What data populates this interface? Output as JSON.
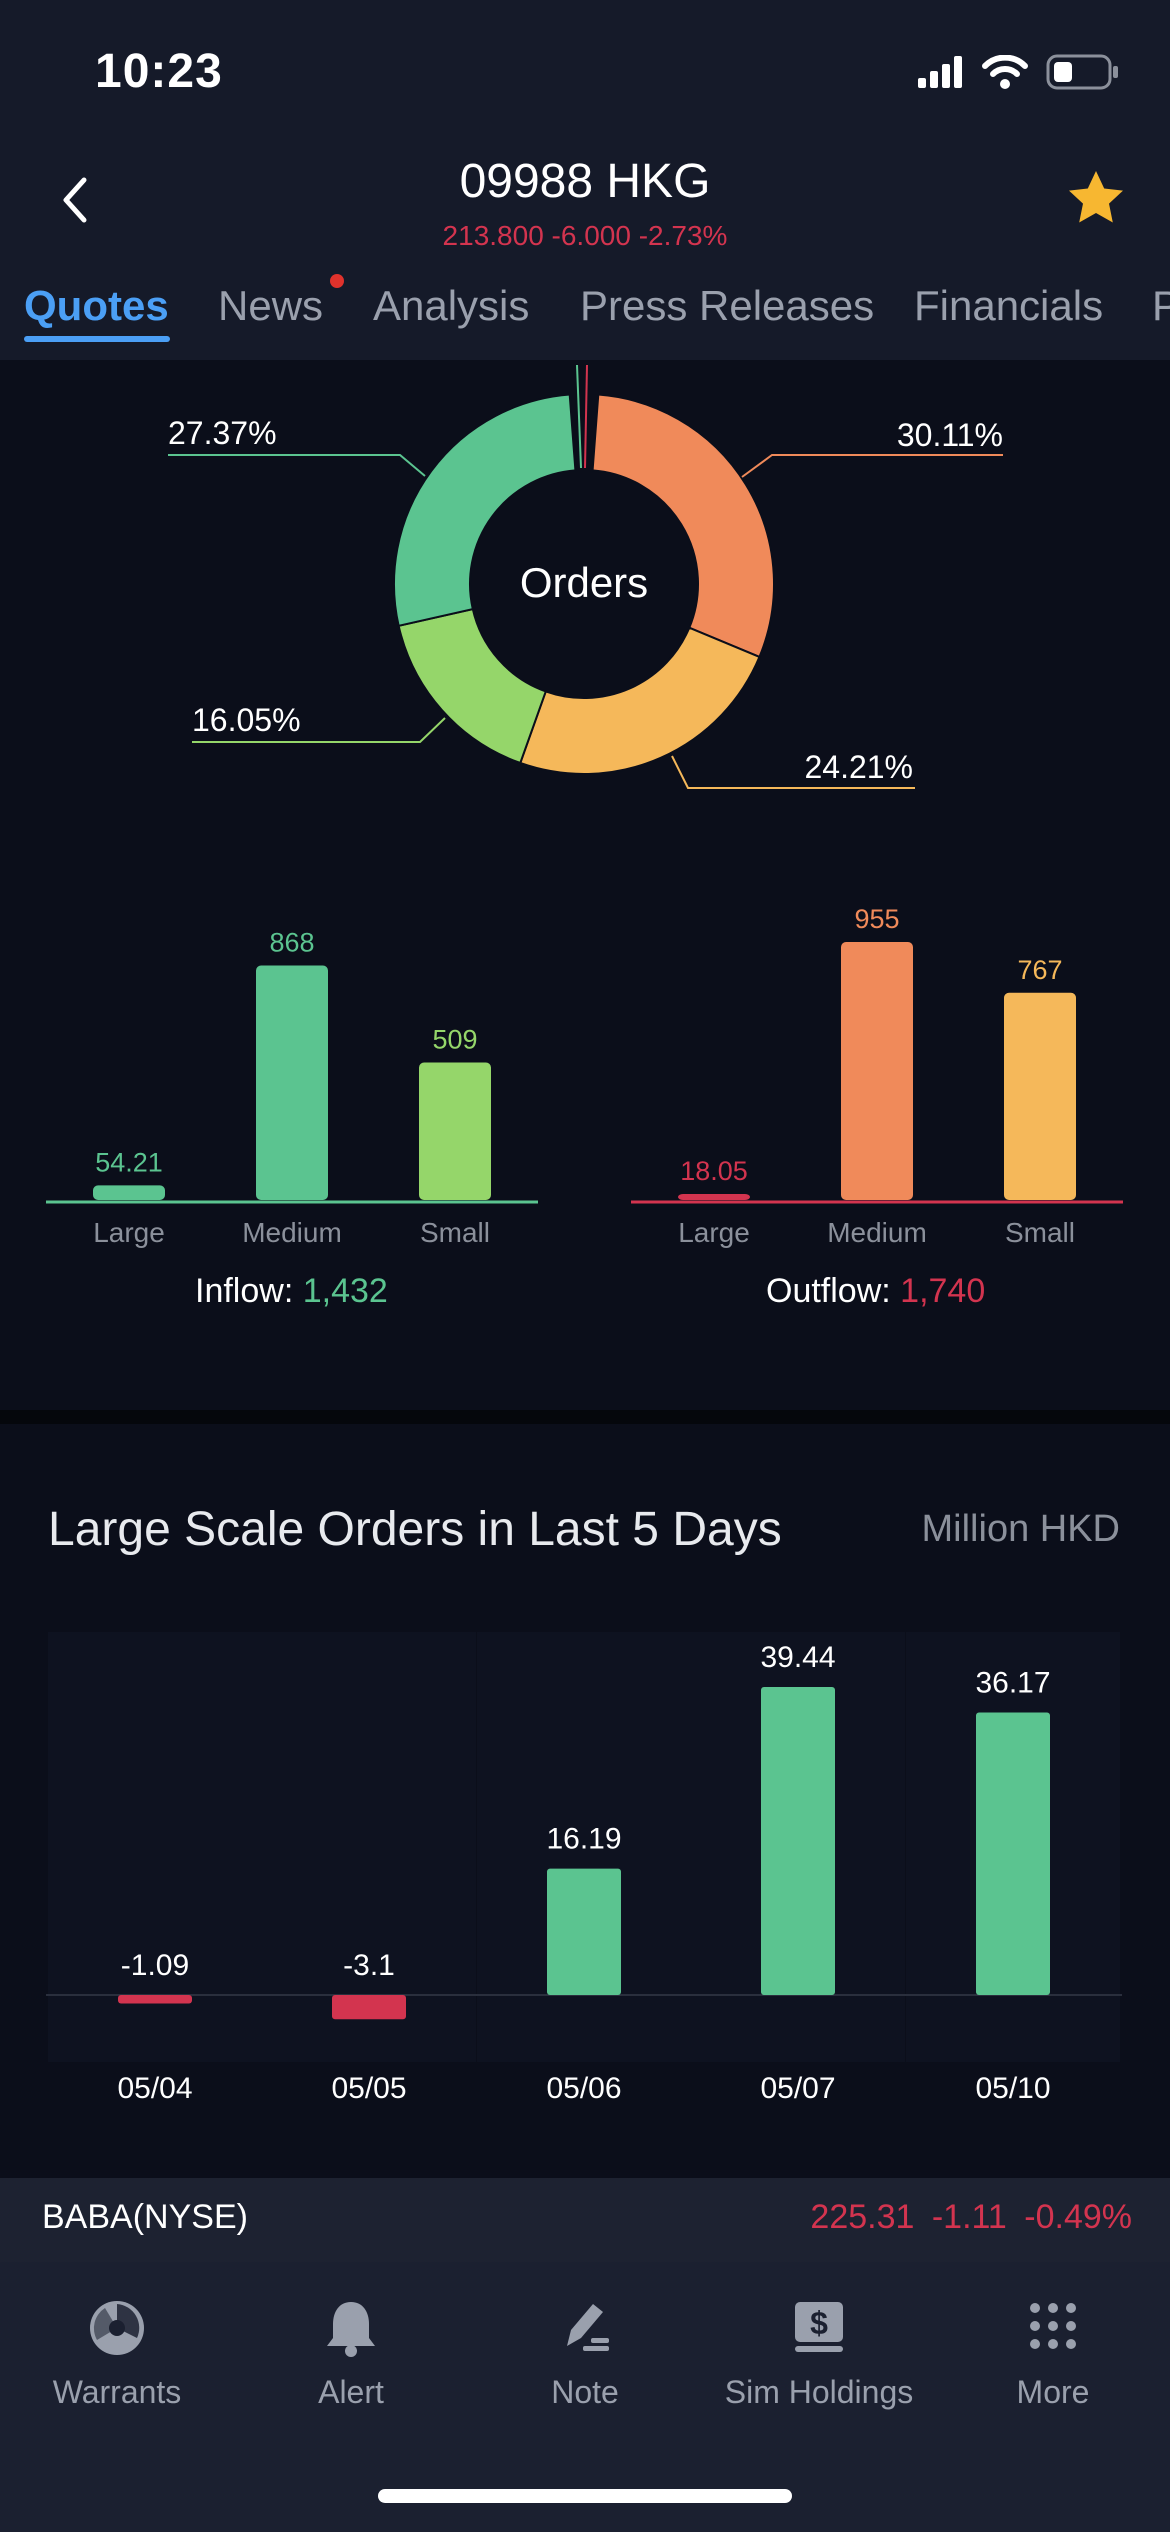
{
  "status_bar": {
    "time": "10:23"
  },
  "header": {
    "title": "09988 HKG",
    "quote": "213.800 -6.000 -2.73%"
  },
  "tabs": [
    {
      "label": "Quotes",
      "active": true
    },
    {
      "label": "News",
      "has_badge": true
    },
    {
      "label": "Analysis"
    },
    {
      "label": "Press Releases"
    },
    {
      "label": "Financials"
    },
    {
      "label": "P"
    }
  ],
  "orders_donut": {
    "center_label": "Orders",
    "slices": [
      {
        "label": "30.11%",
        "value": 30.11,
        "color": "#f08a5a"
      },
      {
        "label": "24.21%",
        "value": 24.21,
        "color": "#f5b85a"
      },
      {
        "label": "16.05%",
        "value": 16.05,
        "color": "#95d66a"
      },
      {
        "label": "27.37%",
        "value": 27.37,
        "color": "#5bc490"
      }
    ]
  },
  "inflow": {
    "label": "Inflow:",
    "total": "1,432",
    "categories": [
      "Large",
      "Medium",
      "Small"
    ],
    "values": [
      54.21,
      868,
      509
    ],
    "value_labels": [
      "54.21",
      "868",
      "509"
    ],
    "colors": [
      "#5bc490",
      "#5bc490",
      "#95d66a"
    ]
  },
  "outflow": {
    "label": "Outflow:",
    "total": "1,740",
    "categories": [
      "Large",
      "Medium",
      "Small"
    ],
    "values": [
      18.05,
      955,
      767
    ],
    "value_labels": [
      "18.05",
      "955",
      "767"
    ],
    "colors": [
      "#d3344f",
      "#f08a5a",
      "#f5b85a"
    ]
  },
  "large_orders": {
    "title": "Large Scale Orders in Last 5 Days",
    "unit": "Million HKD"
  },
  "chart_data": [
    {
      "type": "pie",
      "title": "Orders",
      "categories": [
        "",
        "",
        "",
        ""
      ],
      "values": [
        30.11,
        24.21,
        16.05,
        27.37
      ]
    },
    {
      "type": "bar",
      "categories": [
        "Large",
        "Medium",
        "Small"
      ],
      "series": [
        {
          "name": "Inflow",
          "values": [
            54.21,
            868,
            509
          ]
        }
      ]
    },
    {
      "type": "bar",
      "categories": [
        "Large",
        "Medium",
        "Small"
      ],
      "series": [
        {
          "name": "Outflow",
          "values": [
            18.05,
            955,
            767
          ]
        }
      ]
    },
    {
      "type": "bar",
      "title": "Large Scale Orders in Last 5 Days",
      "ylabel": "Million HKD",
      "categories": [
        "05/04",
        "05/05",
        "05/06",
        "05/07",
        "05/10"
      ],
      "values": [
        -1.09,
        -3.1,
        16.19,
        39.44,
        36.17
      ],
      "value_labels": [
        "-1.09",
        "-3.1",
        "16.19",
        "39.44",
        "36.17"
      ]
    }
  ],
  "colors": {
    "positive": "#5bc490",
    "negative": "#d3344f",
    "accent": "#4b9ff5",
    "star": "#f7b731"
  },
  "ticker": {
    "symbol": "BABA(NYSE)",
    "quote": "225.31  -1.11  -0.49%"
  },
  "bottom_nav": [
    {
      "label": "Warrants",
      "icon": "warrants-icon"
    },
    {
      "label": "Alert",
      "icon": "bell-icon"
    },
    {
      "label": "Note",
      "icon": "note-pen-icon"
    },
    {
      "label": "Sim Holdings",
      "icon": "dollar-doc-icon"
    },
    {
      "label": "More",
      "icon": "grid-dots-icon"
    }
  ]
}
